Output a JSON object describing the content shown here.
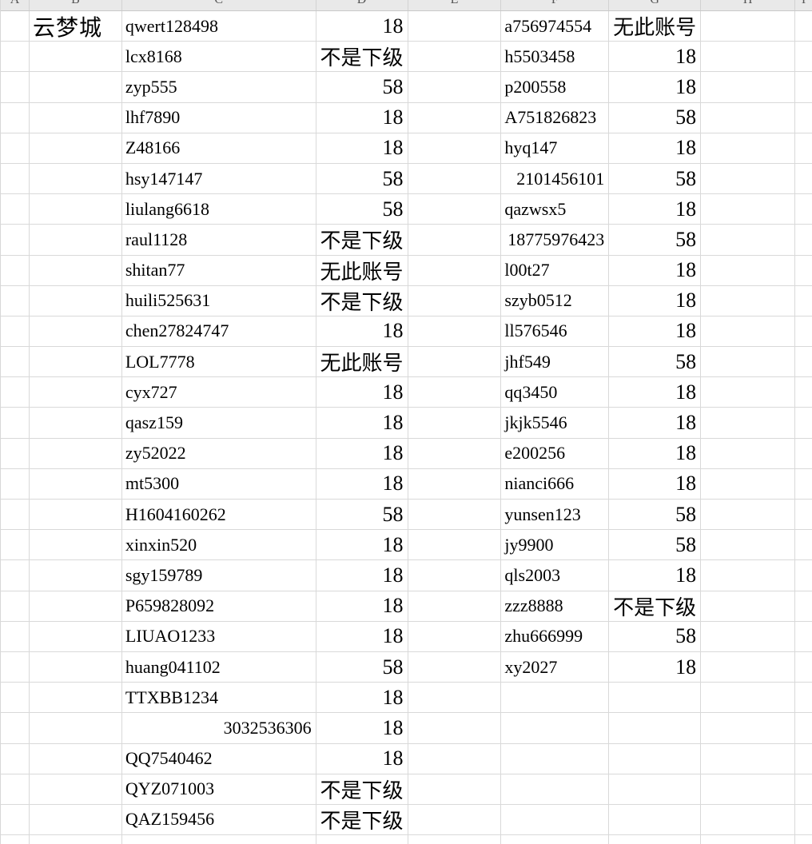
{
  "sheet": {
    "column_headers": [
      "A",
      "B",
      "C",
      "D",
      "E",
      "F",
      "G",
      "H",
      "I"
    ],
    "colors": {
      "background": "#ffffff",
      "gridline": "#d9d9d9",
      "header_background": "#e9e9e9",
      "header_separator": "#d2d2d2",
      "header_bottom_border": "#c9c9c9",
      "text": "#000000"
    },
    "status_labels": {
      "not_subordinate": "不是下级",
      "no_such_account": "无此账号"
    },
    "rows": [
      {
        "b": "云梦城",
        "c": "qwert128498",
        "d": "18",
        "f": "a756974554",
        "g": "无此账号"
      },
      {
        "c": "lcx8168",
        "d": "不是下级",
        "f": "h5503458",
        "g": "18"
      },
      {
        "c": "zyp555",
        "d": "58",
        "f": "p200558",
        "g": "18"
      },
      {
        "c": "lhf7890",
        "d": "18",
        "f": "A751826823",
        "g": "58"
      },
      {
        "c": "Z48166",
        "d": "18",
        "f": "hyq147",
        "g": "18"
      },
      {
        "c": "hsy147147",
        "d": "58",
        "f": "2101456101",
        "f_num": true,
        "g": "58"
      },
      {
        "c": "liulang6618",
        "d": "58",
        "f": "qazwsx5",
        "g": "18"
      },
      {
        "c": "raul1128",
        "d": "不是下级",
        "f": "18775976423",
        "f_num": true,
        "g": "58"
      },
      {
        "c": "shitan77",
        "d": "无此账号",
        "f": "l00t27",
        "g": "18"
      },
      {
        "c": "huili525631",
        "d": "不是下级",
        "f": "szyb0512",
        "g": "18"
      },
      {
        "c": "chen27824747",
        "d": "18",
        "f": "ll576546",
        "g": "18"
      },
      {
        "c": "LOL7778",
        "d": "无此账号",
        "f": "jhf549",
        "g": "58"
      },
      {
        "c": "cyx727",
        "d": "18",
        "f": "qq3450",
        "g": "18"
      },
      {
        "c": "qasz159",
        "d": "18",
        "f": "jkjk5546",
        "g": "18"
      },
      {
        "c": "zy52022",
        "d": "18",
        "f": "e200256",
        "g": "18"
      },
      {
        "c": "mt5300",
        "d": "18",
        "f": "nianci666",
        "g": "18"
      },
      {
        "c": "H1604160262",
        "d": "58",
        "f": "yunsen123",
        "g": "58"
      },
      {
        "c": "xinxin520",
        "d": "18",
        "f": "jy9900",
        "g": "58"
      },
      {
        "c": "sgy159789",
        "d": "18",
        "f": "qls2003",
        "g": "18"
      },
      {
        "c": "P659828092",
        "d": "18",
        "f": "zzz8888",
        "g": "不是下级"
      },
      {
        "c": "LIUAO1233",
        "d": "18",
        "f": "zhu666999",
        "g": "58"
      },
      {
        "c": "huang041102",
        "d": "58",
        "f": "xy2027",
        "g": "18"
      },
      {
        "c": "TTXBB1234",
        "d": "18"
      },
      {
        "c": "3032536306",
        "c_num": true,
        "d": "18"
      },
      {
        "c": "QQ7540462",
        "d": "18"
      },
      {
        "c": "QYZ071003",
        "d": "不是下级"
      },
      {
        "c": "QAZ159456",
        "d": "不是下级"
      },
      {}
    ]
  }
}
